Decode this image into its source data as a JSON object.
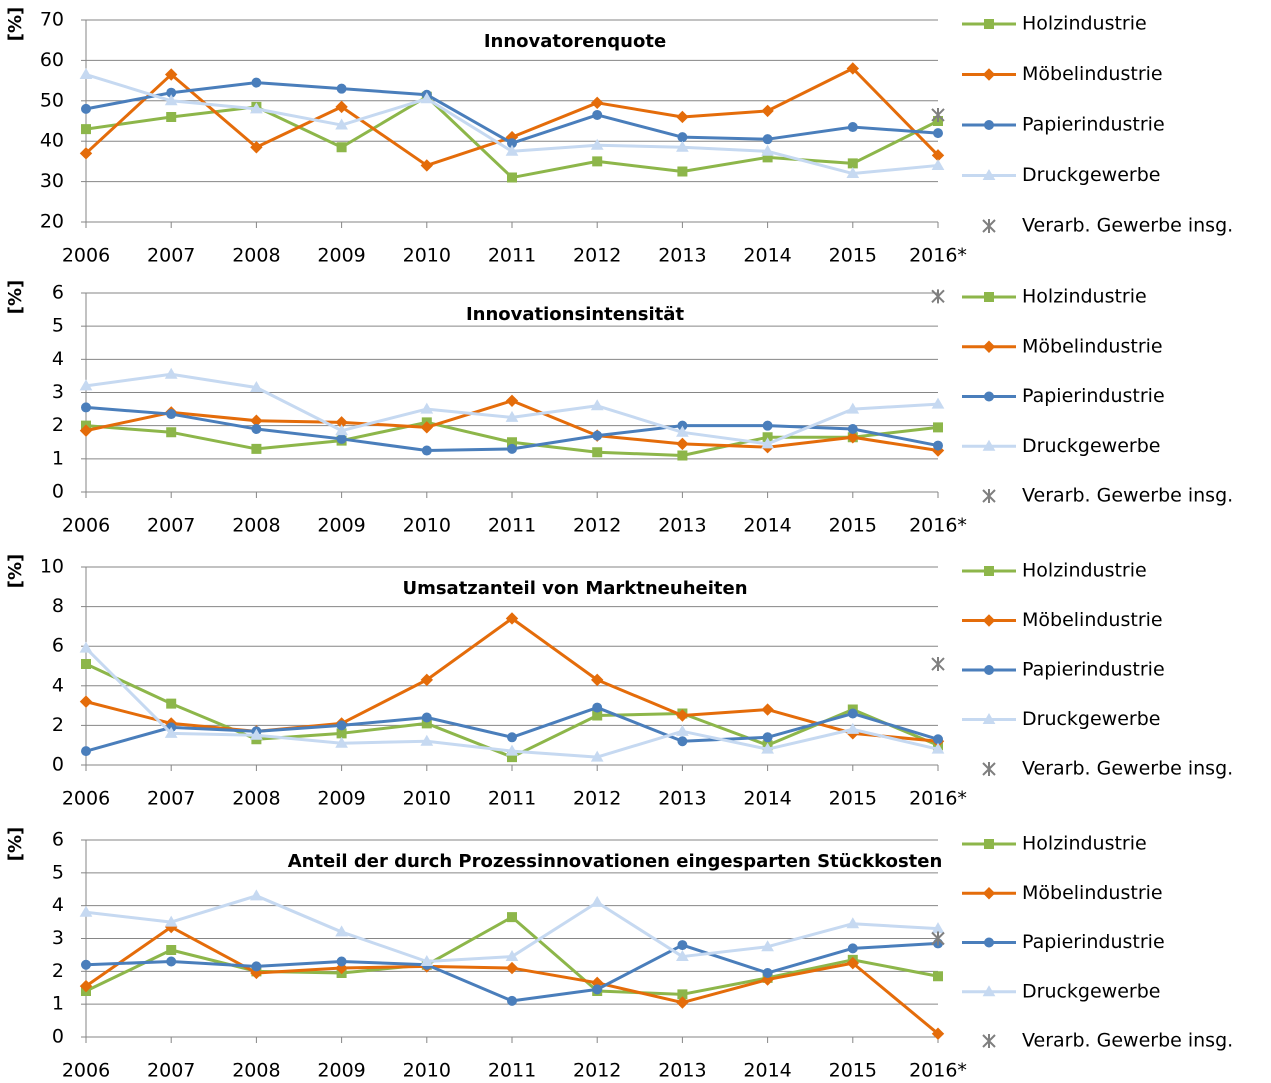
{
  "chart_data": [
    {
      "type": "line",
      "title": "Innovatorenquote",
      "y_label": "[%]",
      "categories": [
        "2006",
        "2007",
        "2008",
        "2009",
        "2010",
        "2011",
        "2012",
        "2013",
        "2014",
        "2015",
        "2016*"
      ],
      "ylim": [
        20,
        70
      ],
      "yticks": [
        20,
        30,
        40,
        50,
        60,
        70
      ],
      "grid": true,
      "series": [
        {
          "name": "Holzindustrie",
          "color": "#8db64a",
          "marker": "square",
          "values": [
            43,
            46,
            48.5,
            38.5,
            51,
            31,
            35,
            32.5,
            36,
            34.5,
            45
          ]
        },
        {
          "name": "Möbelindustrie",
          "color": "#e46c0a",
          "marker": "diamond",
          "values": [
            37,
            56.5,
            38.5,
            48.5,
            34,
            41,
            49.5,
            46,
            47.5,
            58,
            36.5
          ]
        },
        {
          "name": "Papierindustrie",
          "color": "#4a7ebb",
          "marker": "circle",
          "values": [
            48,
            52,
            54.5,
            53,
            51.5,
            39.5,
            46.5,
            41,
            40.5,
            43.5,
            42
          ]
        },
        {
          "name": "Druckgewerbe",
          "color": "#c6d9f1",
          "marker": "triangle",
          "values": [
            56.5,
            50,
            48,
            44,
            50.5,
            37.5,
            39,
            38.5,
            37.5,
            32,
            34
          ]
        },
        {
          "name": "Verarb. Gewerbe insg.",
          "color": "#7f7f7f",
          "marker": "star",
          "line": false,
          "values": [
            null,
            null,
            null,
            null,
            null,
            null,
            null,
            null,
            null,
            null,
            46.5
          ]
        }
      ]
    },
    {
      "type": "line",
      "title": "Innovationsintensität",
      "y_label": "[%]",
      "categories": [
        "2006",
        "2007",
        "2008",
        "2009",
        "2010",
        "2011",
        "2012",
        "2013",
        "2014",
        "2015",
        "2016*"
      ],
      "ylim": [
        0,
        6
      ],
      "yticks": [
        0,
        1,
        2,
        3,
        4,
        5,
        6
      ],
      "grid": true,
      "series": [
        {
          "name": "Holzindustrie",
          "color": "#8db64a",
          "marker": "square",
          "values": [
            2.0,
            1.8,
            1.3,
            1.55,
            2.1,
            1.5,
            1.2,
            1.1,
            1.65,
            1.65,
            1.95
          ]
        },
        {
          "name": "Möbelindustrie",
          "color": "#e46c0a",
          "marker": "diamond",
          "values": [
            1.85,
            2.4,
            2.15,
            2.1,
            1.95,
            2.75,
            1.7,
            1.45,
            1.35,
            1.65,
            1.25
          ]
        },
        {
          "name": "Papierindustrie",
          "color": "#4a7ebb",
          "marker": "circle",
          "values": [
            2.55,
            2.35,
            1.9,
            1.6,
            1.25,
            1.3,
            1.7,
            2.0,
            2.0,
            1.9,
            1.4
          ]
        },
        {
          "name": "Druckgewerbe",
          "color": "#c6d9f1",
          "marker": "triangle",
          "values": [
            3.2,
            3.55,
            3.15,
            1.85,
            2.5,
            2.25,
            2.6,
            1.8,
            1.45,
            2.5,
            2.65
          ]
        },
        {
          "name": "Verarb. Gewerbe insg.",
          "color": "#7f7f7f",
          "marker": "star",
          "line": false,
          "values": [
            null,
            null,
            null,
            null,
            null,
            null,
            null,
            null,
            null,
            null,
            5.9
          ]
        }
      ]
    },
    {
      "type": "line",
      "title": "Umsatzanteil von Marktneuheiten",
      "y_label": "[%]",
      "categories": [
        "2006",
        "2007",
        "2008",
        "2009",
        "2010",
        "2011",
        "2012",
        "2013",
        "2014",
        "2015",
        "2016*"
      ],
      "ylim": [
        0,
        10
      ],
      "yticks": [
        0,
        2,
        4,
        6,
        8,
        10
      ],
      "grid": true,
      "series": [
        {
          "name": "Holzindustrie",
          "color": "#8db64a",
          "marker": "square",
          "values": [
            5.1,
            3.1,
            1.3,
            1.6,
            2.1,
            0.4,
            2.5,
            2.6,
            1.0,
            2.8,
            1.0
          ]
        },
        {
          "name": "Möbelindustrie",
          "color": "#e46c0a",
          "marker": "diamond",
          "values": [
            3.2,
            2.1,
            1.7,
            2.1,
            4.3,
            7.4,
            4.3,
            2.5,
            2.8,
            1.6,
            1.2
          ]
        },
        {
          "name": "Papierindustrie",
          "color": "#4a7ebb",
          "marker": "circle",
          "values": [
            0.7,
            1.9,
            1.7,
            2.0,
            2.4,
            1.4,
            2.9,
            1.2,
            1.4,
            2.6,
            1.3
          ]
        },
        {
          "name": "Druckgewerbe",
          "color": "#c6d9f1",
          "marker": "triangle",
          "values": [
            5.9,
            1.6,
            1.5,
            1.1,
            1.2,
            0.7,
            0.4,
            1.7,
            0.8,
            1.8,
            0.8
          ]
        },
        {
          "name": "Verarb. Gewerbe insg.",
          "color": "#7f7f7f",
          "marker": "star",
          "line": false,
          "values": [
            null,
            null,
            null,
            null,
            null,
            null,
            null,
            null,
            null,
            null,
            5.1
          ]
        }
      ]
    },
    {
      "type": "line",
      "title": "Anteil der durch Prozessinnovationen eingesparten Stückkosten",
      "y_label": "[%]",
      "categories": [
        "2006",
        "2007",
        "2008",
        "2009",
        "2010",
        "2011",
        "2012",
        "2013",
        "2014",
        "2015",
        "2016*"
      ],
      "ylim": [
        0,
        6
      ],
      "yticks": [
        0,
        1,
        2,
        3,
        4,
        5,
        6
      ],
      "grid": true,
      "series": [
        {
          "name": "Holzindustrie",
          "color": "#8db64a",
          "marker": "square",
          "values": [
            1.4,
            2.65,
            2.0,
            1.95,
            2.2,
            3.65,
            1.4,
            1.3,
            1.8,
            2.35,
            1.85
          ]
        },
        {
          "name": "Möbelindustrie",
          "color": "#e46c0a",
          "marker": "diamond",
          "values": [
            1.55,
            3.35,
            1.95,
            2.1,
            2.15,
            2.1,
            1.65,
            1.05,
            1.75,
            2.25,
            0.1
          ]
        },
        {
          "name": "Papierindustrie",
          "color": "#4a7ebb",
          "marker": "circle",
          "values": [
            2.2,
            2.3,
            2.15,
            2.3,
            2.2,
            1.1,
            1.45,
            2.8,
            1.95,
            2.7,
            2.85
          ]
        },
        {
          "name": "Druckgewerbe",
          "color": "#c6d9f1",
          "marker": "triangle",
          "values": [
            3.8,
            3.5,
            4.3,
            3.2,
            2.3,
            2.45,
            4.1,
            2.45,
            2.75,
            3.45,
            3.3
          ]
        },
        {
          "name": "Verarb. Gewerbe insg.",
          "color": "#7f7f7f",
          "marker": "star",
          "line": false,
          "values": [
            null,
            null,
            null,
            null,
            null,
            null,
            null,
            null,
            null,
            null,
            3.0
          ]
        }
      ]
    }
  ]
}
